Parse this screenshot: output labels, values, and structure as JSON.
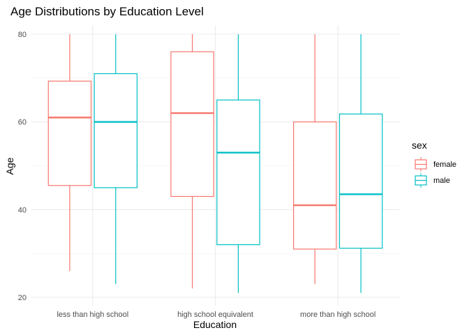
{
  "chart_data": {
    "type": "boxplot",
    "title": "Age Distributions by Education Level",
    "xlabel": "Education",
    "ylabel": "Age",
    "ylim": [
      20,
      80
    ],
    "yticks": [
      20,
      40,
      60,
      80
    ],
    "categories": [
      "less than high school",
      "high school equivalent",
      "more than high school"
    ],
    "legend": {
      "title": "sex",
      "position": "right"
    },
    "grid": true,
    "series": [
      {
        "name": "female",
        "color": "#F8766D",
        "boxes": [
          {
            "min": 26,
            "q1": 45.5,
            "median": 61,
            "q3": 69.3,
            "max": 80
          },
          {
            "min": 22,
            "q1": 43,
            "median": 62,
            "q3": 76,
            "max": 80
          },
          {
            "min": 23,
            "q1": 31,
            "median": 41,
            "q3": 60,
            "max": 80
          }
        ]
      },
      {
        "name": "male",
        "color": "#00BFC4",
        "boxes": [
          {
            "min": 23,
            "q1": 45,
            "median": 60,
            "q3": 71,
            "max": 80
          },
          {
            "min": 21,
            "q1": 32,
            "median": 53,
            "q3": 65,
            "max": 80
          },
          {
            "min": 21,
            "q1": 31.2,
            "median": 43.5,
            "q3": 61.8,
            "max": 80
          }
        ]
      }
    ]
  }
}
